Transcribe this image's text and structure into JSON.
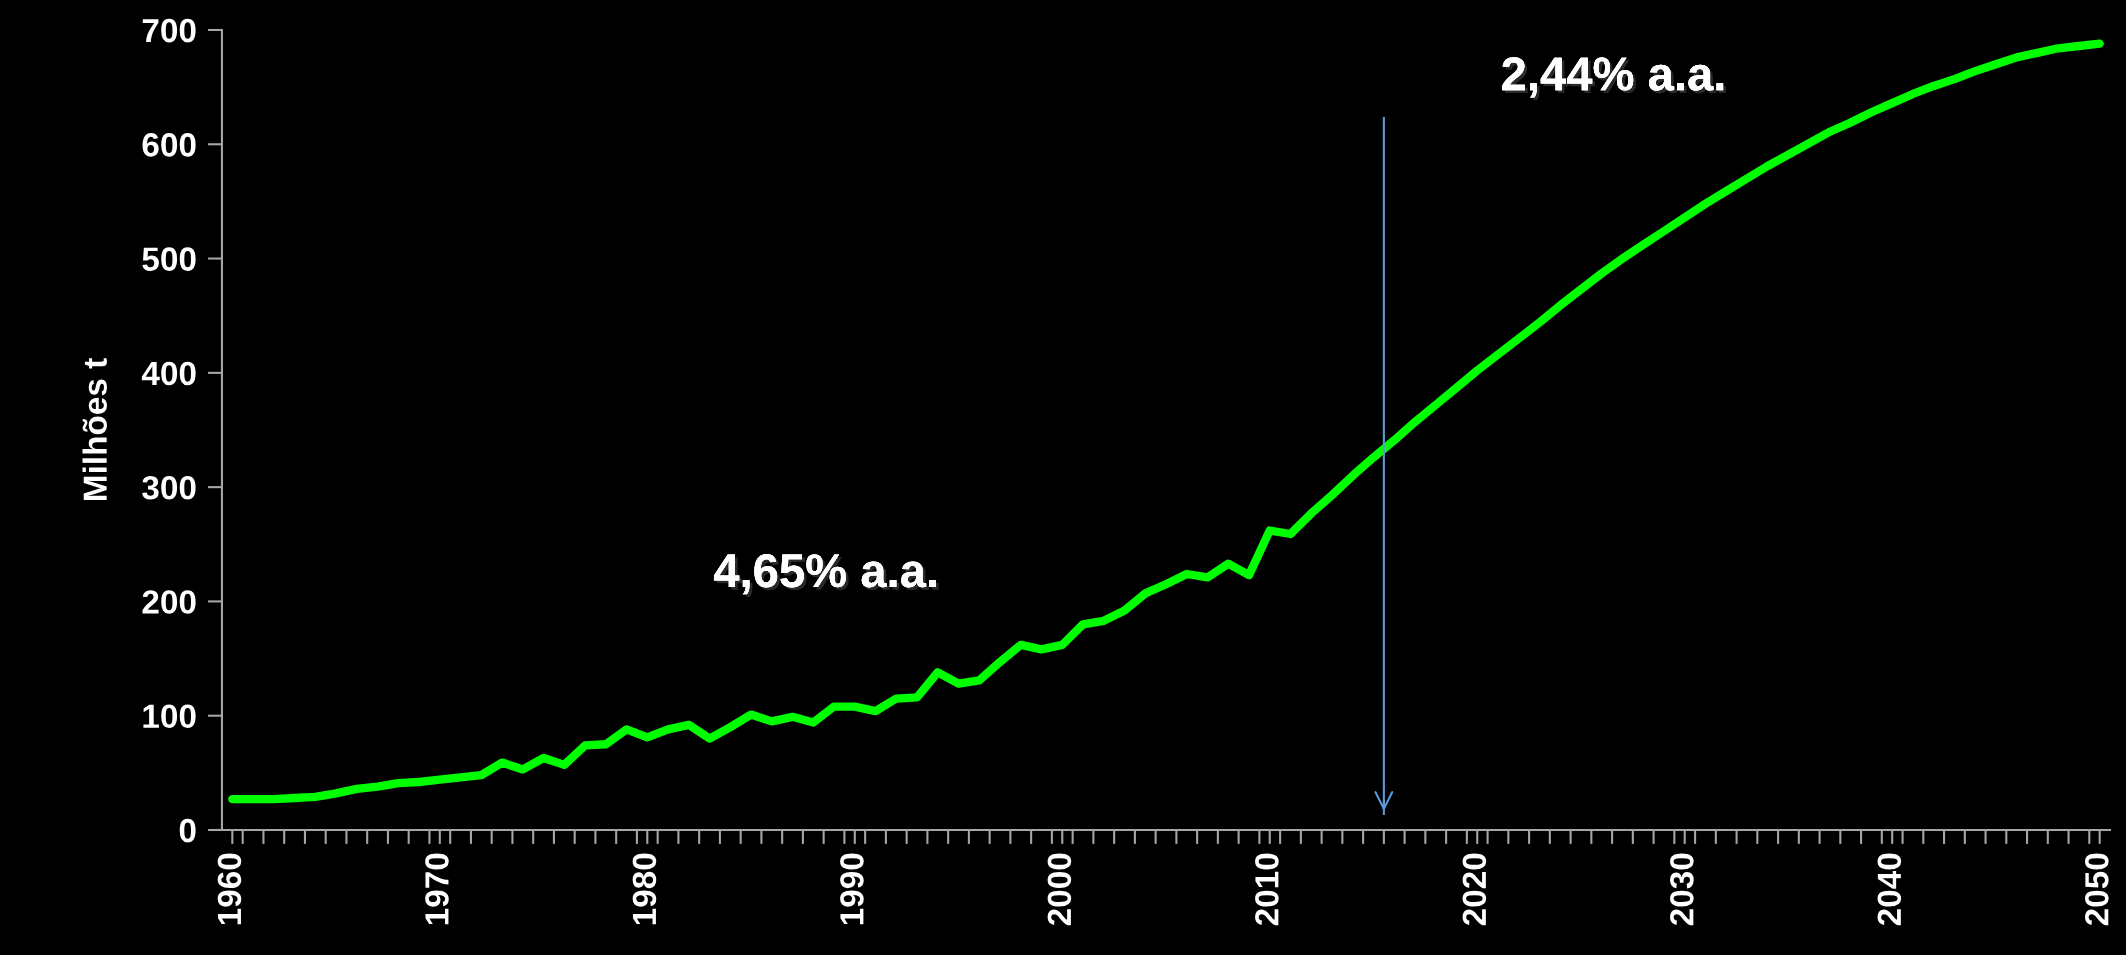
{
  "chart_data": {
    "type": "line",
    "ylabel": "Milhões t",
    "x": [
      1960,
      1961,
      1962,
      1963,
      1964,
      1965,
      1966,
      1967,
      1968,
      1969,
      1970,
      1971,
      1972,
      1973,
      1974,
      1975,
      1976,
      1977,
      1978,
      1979,
      1980,
      1981,
      1982,
      1983,
      1984,
      1985,
      1986,
      1987,
      1988,
      1989,
      1990,
      1991,
      1992,
      1993,
      1994,
      1995,
      1996,
      1997,
      1998,
      1999,
      2000,
      2001,
      2002,
      2003,
      2004,
      2005,
      2006,
      2007,
      2008,
      2009,
      2010,
      2011,
      2012,
      2013,
      2014,
      2015,
      2016,
      2017,
      2018,
      2019,
      2020,
      2021,
      2022,
      2023,
      2024,
      2025,
      2026,
      2027,
      2028,
      2029,
      2030,
      2031,
      2032,
      2033,
      2034,
      2035,
      2036,
      2037,
      2038,
      2039,
      2040,
      2041,
      2042,
      2043,
      2044,
      2045,
      2046,
      2047,
      2048,
      2049,
      2050
    ],
    "series": [
      {
        "color": "#00ff00",
        "values": [
          27,
          27,
          27,
          28,
          29,
          32,
          36,
          38,
          41,
          42,
          44,
          46,
          48,
          59,
          53,
          63,
          57,
          74,
          75,
          88,
          81,
          88,
          92,
          80,
          90,
          101,
          95,
          99,
          94,
          108,
          108,
          104,
          115,
          116,
          138,
          128,
          131,
          147,
          162,
          158,
          162,
          180,
          183,
          192,
          207,
          215,
          224,
          221,
          233,
          223,
          262,
          259,
          277,
          293,
          310,
          326,
          341,
          357,
          372,
          387,
          402,
          416,
          430,
          444,
          459,
          473,
          487,
          500,
          512,
          524,
          536,
          548,
          559,
          570,
          581,
          591,
          601,
          611,
          619,
          628,
          636,
          644,
          651,
          657,
          664,
          670,
          676,
          680,
          684,
          686,
          688
        ]
      }
    ],
    "xlim": [
      1959.5,
      2050.5
    ],
    "xticks": [
      {
        "value": 1960,
        "label": "1960"
      },
      {
        "value": 1970,
        "label": "1970"
      },
      {
        "value": 1980,
        "label": "1980"
      },
      {
        "value": 1990,
        "label": "1990"
      },
      {
        "value": 2000,
        "label": "2000"
      },
      {
        "value": 2010,
        "label": "2010"
      },
      {
        "value": 2020,
        "label": "2020"
      },
      {
        "value": 2030,
        "label": "2030"
      },
      {
        "value": 2040,
        "label": "2040"
      },
      {
        "value": 2050,
        "label": "2050"
      },
      {
        "value": 1960.5,
        "label": null
      },
      {
        "value": 1961.5,
        "label": null
      },
      {
        "value": 1962.5,
        "label": null
      },
      {
        "value": 1963.5,
        "label": null
      },
      {
        "value": 1964.5,
        "label": null
      },
      {
        "value": 1965.5,
        "label": null
      },
      {
        "value": 1966.5,
        "label": null
      },
      {
        "value": 1967.5,
        "label": null
      },
      {
        "value": 1968.5,
        "label": null
      },
      {
        "value": 1969.5,
        "label": null
      },
      {
        "value": 1970.5,
        "label": null
      },
      {
        "value": 1971.5,
        "label": null
      },
      {
        "value": 1972.5,
        "label": null
      },
      {
        "value": 1973.5,
        "label": null
      },
      {
        "value": 1974.5,
        "label": null
      },
      {
        "value": 1975.5,
        "label": null
      },
      {
        "value": 1976.5,
        "label": null
      },
      {
        "value": 1977.5,
        "label": null
      },
      {
        "value": 1978.5,
        "label": null
      },
      {
        "value": 1979.5,
        "label": null
      },
      {
        "value": 1980.5,
        "label": null
      },
      {
        "value": 1981.5,
        "label": null
      },
      {
        "value": 1982.5,
        "label": null
      },
      {
        "value": 1983.5,
        "label": null
      },
      {
        "value": 1984.5,
        "label": null
      },
      {
        "value": 1985.5,
        "label": null
      },
      {
        "value": 1986.5,
        "label": null
      },
      {
        "value": 1987.5,
        "label": null
      },
      {
        "value": 1988.5,
        "label": null
      },
      {
        "value": 1989.5,
        "label": null
      },
      {
        "value": 1990.5,
        "label": null
      },
      {
        "value": 1991.5,
        "label": null
      },
      {
        "value": 1992.5,
        "label": null
      },
      {
        "value": 1993.5,
        "label": null
      },
      {
        "value": 1994.5,
        "label": null
      },
      {
        "value": 1995.5,
        "label": null
      },
      {
        "value": 1996.5,
        "label": null
      },
      {
        "value": 1997.5,
        "label": null
      },
      {
        "value": 1998.5,
        "label": null
      },
      {
        "value": 1999.5,
        "label": null
      },
      {
        "value": 2000.5,
        "label": null
      },
      {
        "value": 2001.5,
        "label": null
      },
      {
        "value": 2002.5,
        "label": null
      },
      {
        "value": 2003.5,
        "label": null
      },
      {
        "value": 2004.5,
        "label": null
      },
      {
        "value": 2005.5,
        "label": null
      },
      {
        "value": 2006.5,
        "label": null
      },
      {
        "value": 2007.5,
        "label": null
      },
      {
        "value": 2008.5,
        "label": null
      },
      {
        "value": 2009.5,
        "label": null
      },
      {
        "value": 2010.5,
        "label": null
      },
      {
        "value": 2011.5,
        "label": null
      },
      {
        "value": 2012.5,
        "label": null
      },
      {
        "value": 2013.5,
        "label": null
      },
      {
        "value": 2014.5,
        "label": null
      },
      {
        "value": 2015.5,
        "label": null
      },
      {
        "value": 2016.5,
        "label": null
      },
      {
        "value": 2017.5,
        "label": null
      },
      {
        "value": 2018.5,
        "label": null
      },
      {
        "value": 2019.5,
        "label": null
      },
      {
        "value": 2020.5,
        "label": null
      },
      {
        "value": 2021.5,
        "label": null
      },
      {
        "value": 2022.5,
        "label": null
      },
      {
        "value": 2023.5,
        "label": null
      },
      {
        "value": 2024.5,
        "label": null
      },
      {
        "value": 2025.5,
        "label": null
      },
      {
        "value": 2026.5,
        "label": null
      },
      {
        "value": 2027.5,
        "label": null
      },
      {
        "value": 2028.5,
        "label": null
      },
      {
        "value": 2029.5,
        "label": null
      },
      {
        "value": 2030.5,
        "label": null
      },
      {
        "value": 2031.5,
        "label": null
      },
      {
        "value": 2032.5,
        "label": null
      },
      {
        "value": 2033.5,
        "label": null
      },
      {
        "value": 2034.5,
        "label": null
      },
      {
        "value": 2035.5,
        "label": null
      },
      {
        "value": 2036.5,
        "label": null
      },
      {
        "value": 2037.5,
        "label": null
      },
      {
        "value": 2038.5,
        "label": null
      },
      {
        "value": 2039.5,
        "label": null
      },
      {
        "value": 2040.5,
        "label": null
      },
      {
        "value": 2041.5,
        "label": null
      },
      {
        "value": 2042.5,
        "label": null
      },
      {
        "value": 2043.5,
        "label": null
      },
      {
        "value": 2044.5,
        "label": null
      },
      {
        "value": 2045.5,
        "label": null
      },
      {
        "value": 2046.5,
        "label": null
      },
      {
        "value": 2047.5,
        "label": null
      },
      {
        "value": 2048.5,
        "label": null
      },
      {
        "value": 2049.5,
        "label": null
      }
    ],
    "ylim": [
      0,
      700
    ],
    "yticks": [
      0,
      100,
      200,
      300,
      400,
      500,
      600,
      700
    ],
    "ref_lines": [
      {
        "axis": "x",
        "value": 2015.5,
        "color": "#5b9bd5"
      }
    ],
    "annotations": [
      "4,65% a.a.",
      "2,44% a.a."
    ],
    "grid": false,
    "marker": "none",
    "line_style": "solid"
  }
}
